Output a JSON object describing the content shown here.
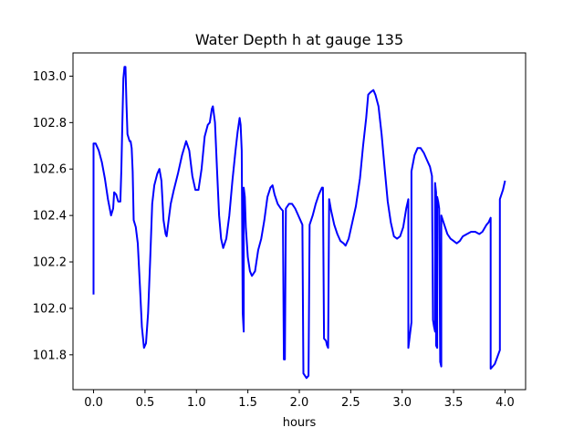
{
  "chart_data": {
    "type": "line",
    "title": "Water Depth h at gauge 135",
    "xlabel": "hours",
    "ylabel": "",
    "xlim": [
      -0.2,
      4.2
    ],
    "ylim": [
      101.65,
      103.1
    ],
    "grid": false,
    "line_color": "#0000ff",
    "xticks": [
      {
        "value": 0.0,
        "label": "0.0"
      },
      {
        "value": 0.5,
        "label": "0.5"
      },
      {
        "value": 1.0,
        "label": "1.0"
      },
      {
        "value": 1.5,
        "label": "1.5"
      },
      {
        "value": 2.0,
        "label": "2.0"
      },
      {
        "value": 2.5,
        "label": "2.5"
      },
      {
        "value": 3.0,
        "label": "3.0"
      },
      {
        "value": 3.5,
        "label": "3.5"
      },
      {
        "value": 4.0,
        "label": "4.0"
      }
    ],
    "yticks": [
      {
        "value": 101.8,
        "label": "101.8"
      },
      {
        "value": 102.0,
        "label": "102.0"
      },
      {
        "value": 102.2,
        "label": "102.2"
      },
      {
        "value": 102.4,
        "label": "102.4"
      },
      {
        "value": 102.6,
        "label": "102.6"
      },
      {
        "value": 102.8,
        "label": "102.8"
      },
      {
        "value": 103.0,
        "label": "103.0"
      }
    ],
    "series": [
      {
        "color": "#0000ff",
        "points": [
          [
            0.0,
            102.06
          ],
          [
            0.0,
            102.71
          ],
          [
            0.02,
            102.71
          ],
          [
            0.05,
            102.68
          ],
          [
            0.08,
            102.63
          ],
          [
            0.11,
            102.56
          ],
          [
            0.14,
            102.47
          ],
          [
            0.17,
            102.4
          ],
          [
            0.19,
            102.43
          ],
          [
            0.2,
            102.5
          ],
          [
            0.22,
            102.49
          ],
          [
            0.24,
            102.46
          ],
          [
            0.26,
            102.46
          ],
          [
            0.27,
            102.6
          ],
          [
            0.28,
            102.8
          ],
          [
            0.29,
            102.99
          ],
          [
            0.3,
            103.04
          ],
          [
            0.31,
            103.04
          ],
          [
            0.32,
            102.88
          ],
          [
            0.33,
            102.75
          ],
          [
            0.35,
            102.72
          ],
          [
            0.36,
            102.72
          ],
          [
            0.37,
            102.69
          ],
          [
            0.38,
            102.59
          ],
          [
            0.39,
            102.38
          ],
          [
            0.41,
            102.35
          ],
          [
            0.43,
            102.28
          ],
          [
            0.45,
            102.1
          ],
          [
            0.47,
            101.92
          ],
          [
            0.49,
            101.83
          ],
          [
            0.51,
            101.85
          ],
          [
            0.53,
            101.98
          ],
          [
            0.55,
            102.2
          ],
          [
            0.57,
            102.45
          ],
          [
            0.59,
            102.53
          ],
          [
            0.62,
            102.58
          ],
          [
            0.64,
            102.6
          ],
          [
            0.66,
            102.55
          ],
          [
            0.68,
            102.38
          ],
          [
            0.7,
            102.32
          ],
          [
            0.71,
            102.31
          ],
          [
            0.73,
            102.38
          ],
          [
            0.75,
            102.45
          ],
          [
            0.78,
            102.51
          ],
          [
            0.82,
            102.58
          ],
          [
            0.86,
            102.66
          ],
          [
            0.9,
            102.72
          ],
          [
            0.93,
            102.68
          ],
          [
            0.96,
            102.57
          ],
          [
            0.99,
            102.51
          ],
          [
            1.02,
            102.51
          ],
          [
            1.05,
            102.6
          ],
          [
            1.08,
            102.74
          ],
          [
            1.11,
            102.79
          ],
          [
            1.13,
            102.8
          ],
          [
            1.15,
            102.86
          ],
          [
            1.16,
            102.87
          ],
          [
            1.18,
            102.8
          ],
          [
            1.2,
            102.6
          ],
          [
            1.22,
            102.4
          ],
          [
            1.24,
            102.3
          ],
          [
            1.26,
            102.26
          ],
          [
            1.29,
            102.3
          ],
          [
            1.32,
            102.4
          ],
          [
            1.35,
            102.55
          ],
          [
            1.38,
            102.68
          ],
          [
            1.4,
            102.76
          ],
          [
            1.42,
            102.82
          ],
          [
            1.43,
            102.79
          ],
          [
            1.44,
            102.68
          ],
          [
            1.45,
            101.98
          ],
          [
            1.46,
            101.9
          ],
          [
            1.46,
            102.52
          ],
          [
            1.47,
            102.48
          ],
          [
            1.48,
            102.35
          ],
          [
            1.5,
            102.22
          ],
          [
            1.52,
            102.16
          ],
          [
            1.54,
            102.14
          ],
          [
            1.57,
            102.16
          ],
          [
            1.6,
            102.25
          ],
          [
            1.63,
            102.3
          ],
          [
            1.66,
            102.38
          ],
          [
            1.69,
            102.48
          ],
          [
            1.72,
            102.52
          ],
          [
            1.74,
            102.53
          ],
          [
            1.76,
            102.49
          ],
          [
            1.79,
            102.45
          ],
          [
            1.82,
            102.43
          ],
          [
            1.84,
            102.42
          ],
          [
            1.85,
            101.78
          ],
          [
            1.86,
            101.78
          ],
          [
            1.87,
            102.43
          ],
          [
            1.9,
            102.45
          ],
          [
            1.93,
            102.45
          ],
          [
            1.96,
            102.43
          ],
          [
            1.99,
            102.4
          ],
          [
            2.02,
            102.37
          ],
          [
            2.03,
            102.36
          ],
          [
            2.04,
            101.72
          ],
          [
            2.07,
            101.7
          ],
          [
            2.09,
            101.71
          ],
          [
            2.1,
            102.36
          ],
          [
            2.13,
            102.4
          ],
          [
            2.16,
            102.45
          ],
          [
            2.19,
            102.49
          ],
          [
            2.22,
            102.52
          ],
          [
            2.23,
            102.52
          ],
          [
            2.24,
            101.87
          ],
          [
            2.26,
            101.86
          ],
          [
            2.27,
            101.84
          ],
          [
            2.28,
            101.83
          ],
          [
            2.29,
            102.47
          ],
          [
            2.31,
            102.42
          ],
          [
            2.34,
            102.36
          ],
          [
            2.37,
            102.32
          ],
          [
            2.4,
            102.29
          ],
          [
            2.43,
            102.28
          ],
          [
            2.45,
            102.27
          ],
          [
            2.48,
            102.3
          ],
          [
            2.51,
            102.36
          ],
          [
            2.55,
            102.44
          ],
          [
            2.59,
            102.56
          ],
          [
            2.62,
            102.7
          ],
          [
            2.65,
            102.82
          ],
          [
            2.67,
            102.92
          ],
          [
            2.69,
            102.93
          ],
          [
            2.72,
            102.94
          ],
          [
            2.74,
            102.92
          ],
          [
            2.77,
            102.87
          ],
          [
            2.8,
            102.75
          ],
          [
            2.83,
            102.6
          ],
          [
            2.86,
            102.46
          ],
          [
            2.89,
            102.37
          ],
          [
            2.92,
            102.31
          ],
          [
            2.95,
            102.3
          ],
          [
            2.98,
            102.31
          ],
          [
            3.01,
            102.35
          ],
          [
            3.04,
            102.43
          ],
          [
            3.06,
            102.47
          ],
          [
            3.06,
            101.83
          ],
          [
            3.09,
            101.94
          ],
          [
            3.09,
            102.59
          ],
          [
            3.12,
            102.66
          ],
          [
            3.15,
            102.69
          ],
          [
            3.18,
            102.69
          ],
          [
            3.21,
            102.67
          ],
          [
            3.24,
            102.64
          ],
          [
            3.27,
            102.61
          ],
          [
            3.29,
            102.57
          ],
          [
            3.3,
            101.95
          ],
          [
            3.31,
            101.92
          ],
          [
            3.32,
            101.9
          ],
          [
            3.32,
            102.54
          ],
          [
            3.33,
            102.5
          ],
          [
            3.33,
            101.84
          ],
          [
            3.34,
            101.83
          ],
          [
            3.34,
            102.48
          ],
          [
            3.35,
            102.46
          ],
          [
            3.36,
            102.43
          ],
          [
            3.37,
            101.77
          ],
          [
            3.38,
            101.75
          ],
          [
            3.38,
            102.4
          ],
          [
            3.41,
            102.36
          ],
          [
            3.44,
            102.32
          ],
          [
            3.47,
            102.3
          ],
          [
            3.5,
            102.29
          ],
          [
            3.53,
            102.28
          ],
          [
            3.56,
            102.29
          ],
          [
            3.59,
            102.31
          ],
          [
            3.63,
            102.32
          ],
          [
            3.67,
            102.33
          ],
          [
            3.71,
            102.33
          ],
          [
            3.75,
            102.32
          ],
          [
            3.78,
            102.33
          ],
          [
            3.82,
            102.36
          ],
          [
            3.84,
            102.37
          ],
          [
            3.86,
            102.39
          ],
          [
            3.86,
            101.74
          ],
          [
            3.9,
            101.76
          ],
          [
            3.95,
            101.82
          ],
          [
            3.95,
            102.47
          ],
          [
            3.98,
            102.51
          ],
          [
            4.0,
            102.55
          ]
        ]
      }
    ]
  }
}
